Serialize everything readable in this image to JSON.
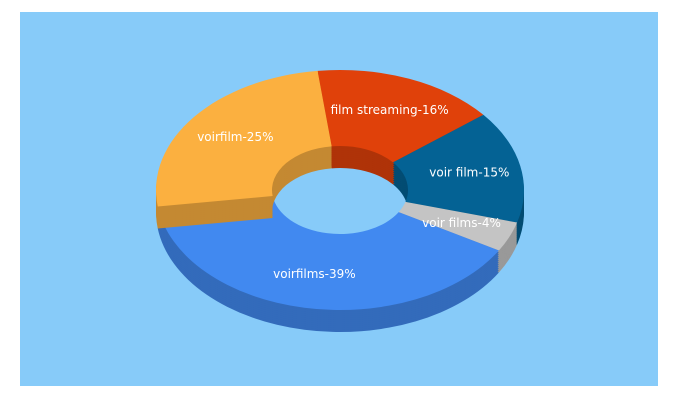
{
  "chart_data": {
    "type": "donut3d",
    "values": [
      16,
      15,
      4,
      39,
      25
    ],
    "value_labels": [
      "film streaming-16%",
      "voir film-15%",
      "voir films-4%",
      "voirfilms-39%",
      "voirfilm-25%"
    ],
    "colors": [
      "#e0410a",
      "#046294",
      "#c4c4c4",
      "#4189f0",
      "#fbb040"
    ]
  }
}
